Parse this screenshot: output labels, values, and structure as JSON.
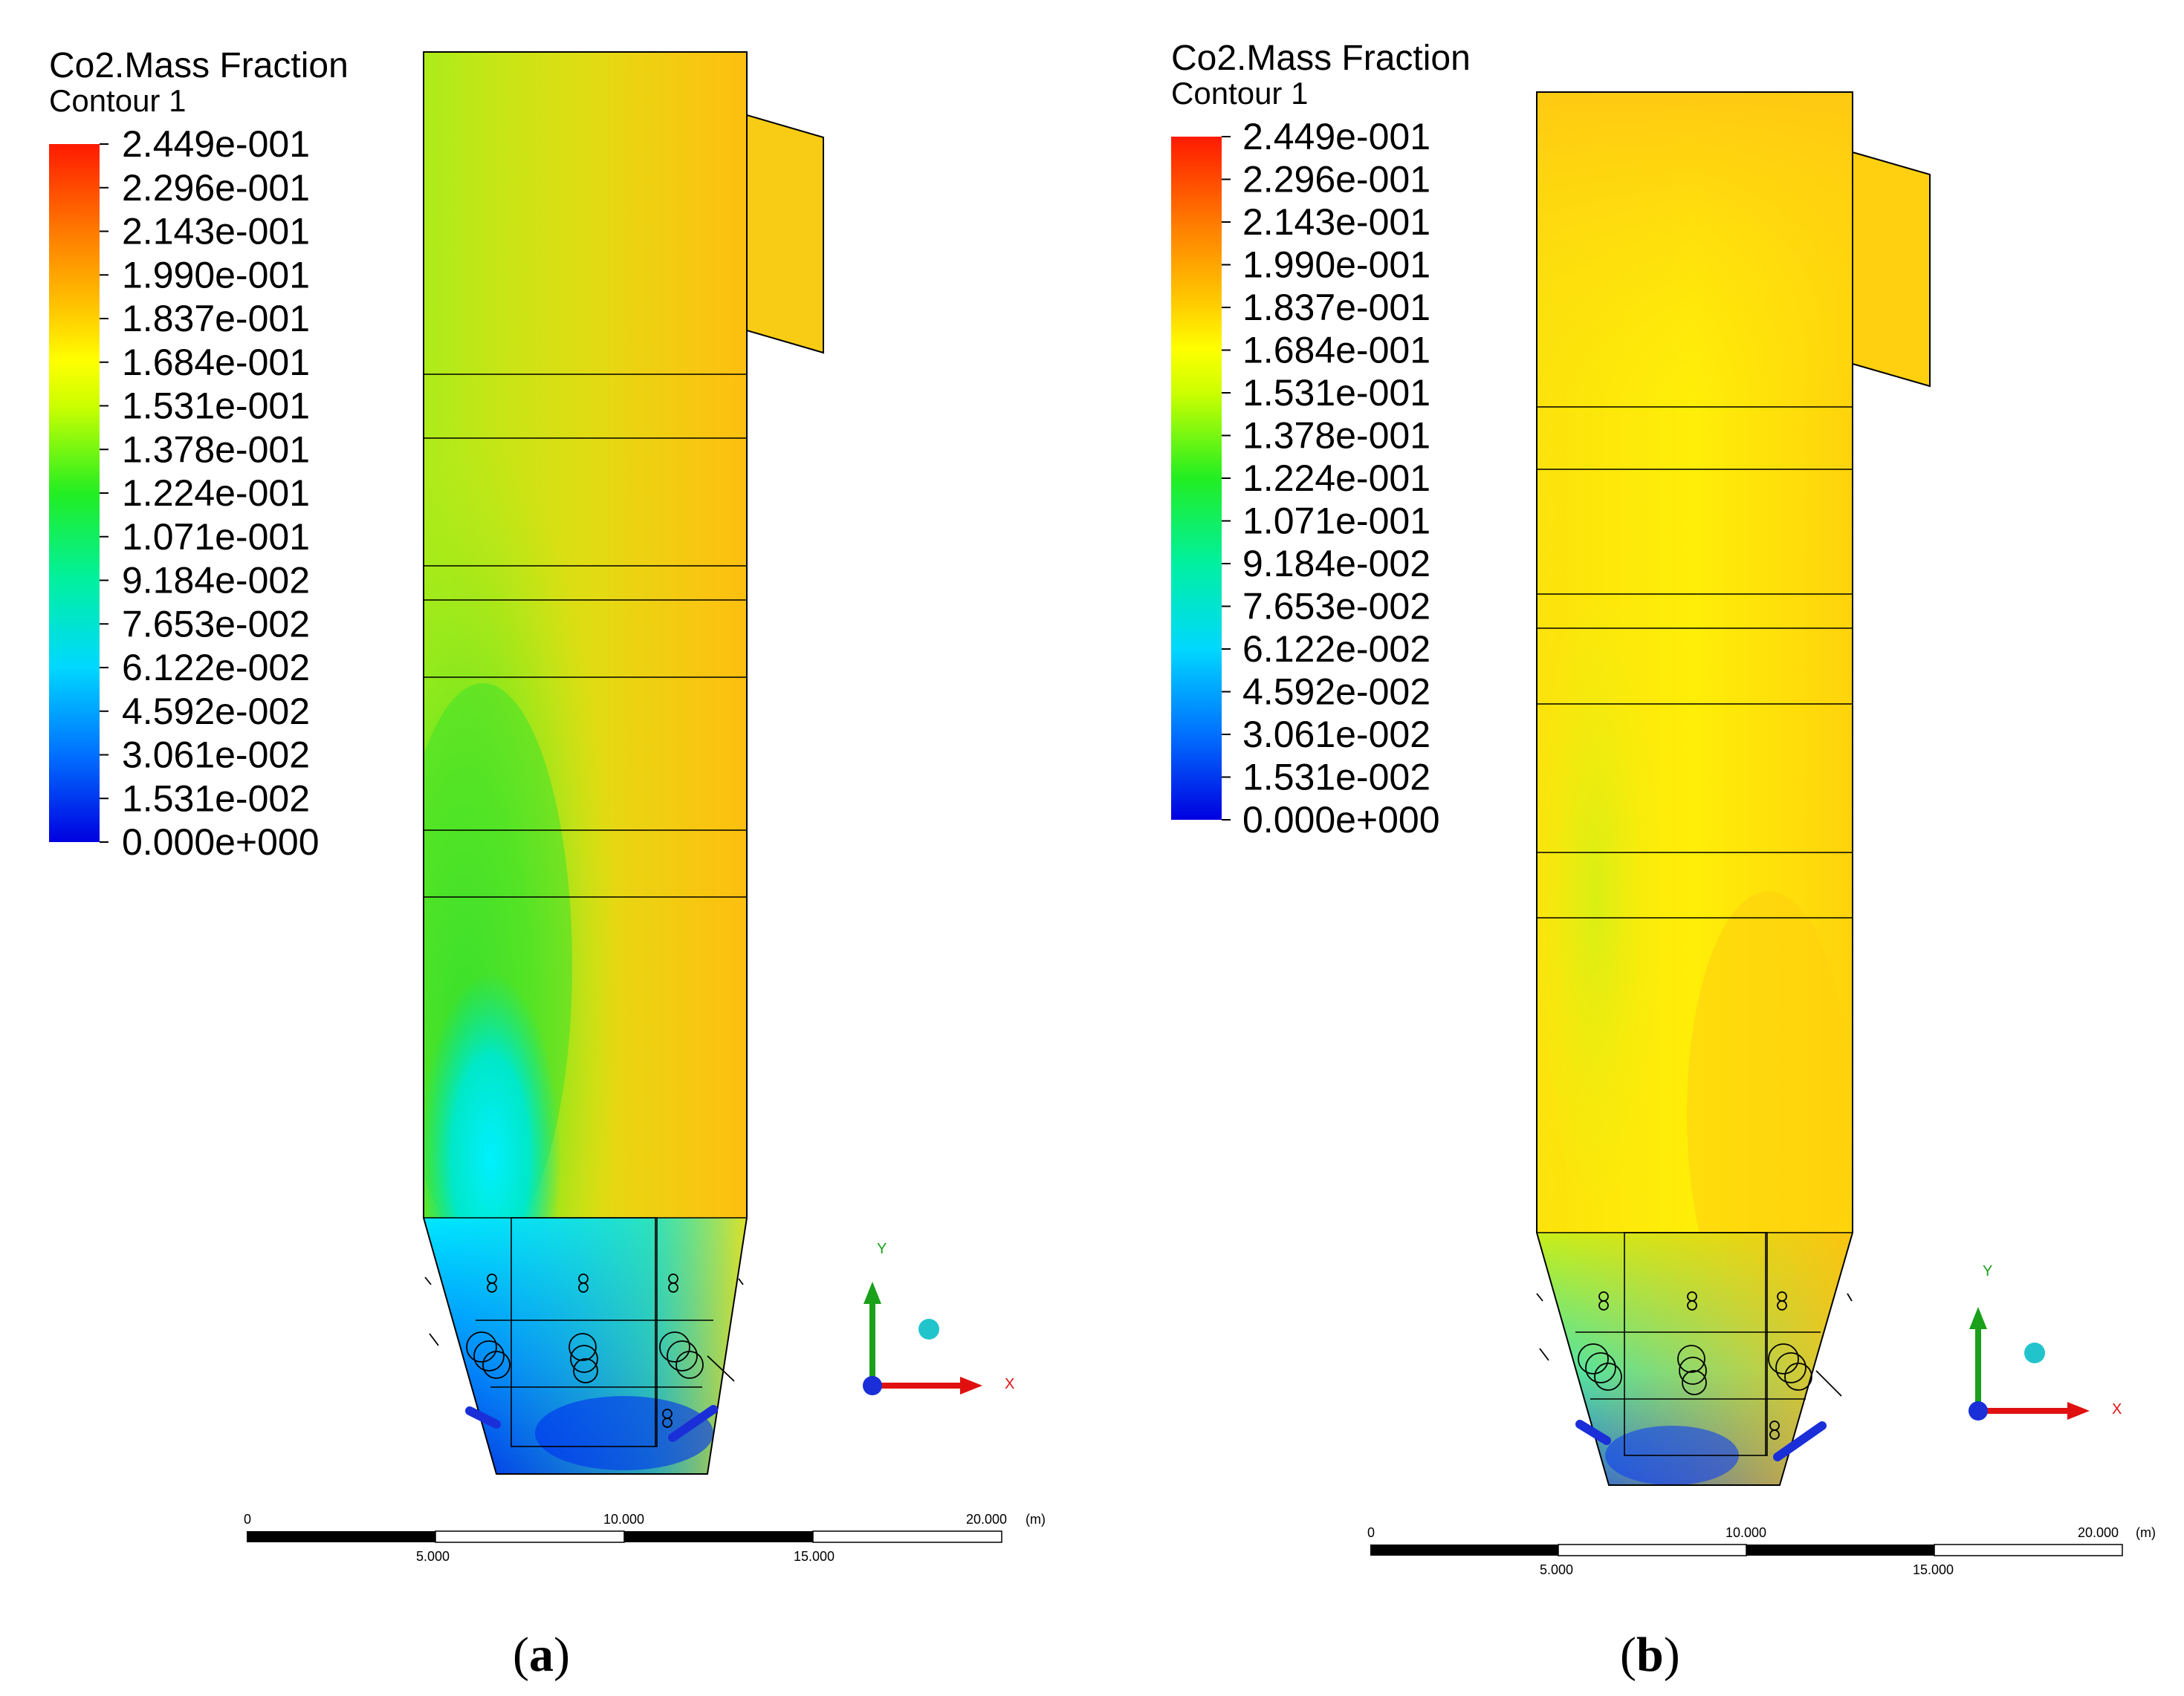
{
  "panels": [
    {
      "id": "a",
      "title": "Co2.Mass Fraction",
      "subtitle": "Contour 1",
      "caption_letter": "a",
      "scale_top": [
        "0",
        "10.000",
        "20.000",
        "(m)"
      ],
      "scale_bottom": [
        "5.000",
        "15.000"
      ],
      "axis_y": "Y",
      "axis_x": "X"
    },
    {
      "id": "b",
      "title": "Co2.Mass Fraction",
      "subtitle": "Contour 1",
      "caption_letter": "b",
      "scale_top": [
        "0",
        "10.000",
        "20.000",
        "(m)"
      ],
      "scale_bottom": [
        "5.000",
        "15.000"
      ],
      "axis_y": "Y",
      "axis_x": "X"
    }
  ],
  "legend_values": [
    "2.449e-001",
    "2.296e-001",
    "2.143e-001",
    "1.990e-001",
    "1.837e-001",
    "1.684e-001",
    "1.531e-001",
    "1.378e-001",
    "1.224e-001",
    "1.071e-001",
    "9.184e-002",
    "7.653e-002",
    "6.122e-002",
    "4.592e-002",
    "3.061e-002",
    "1.531e-002",
    "0.000e+000"
  ],
  "legend_colors": [
    "#ff1a00",
    "#ff4a00",
    "#ff7a00",
    "#ffa600",
    "#ffd000",
    "#ffff00",
    "#ccff00",
    "#88ff00",
    "#33ee22",
    "#00dd55",
    "#00f0a0",
    "#00ffe0",
    "#00c8ff",
    "#0090ff",
    "#0060ff",
    "#0030f0",
    "#0000e0"
  ],
  "colors": {
    "field_a_main": "#c8f016",
    "field_b_main": "#ffdf08",
    "axis_y": "#1aa01a",
    "axis_x": "#e01010",
    "axis_ball": "#22c4cc"
  }
}
